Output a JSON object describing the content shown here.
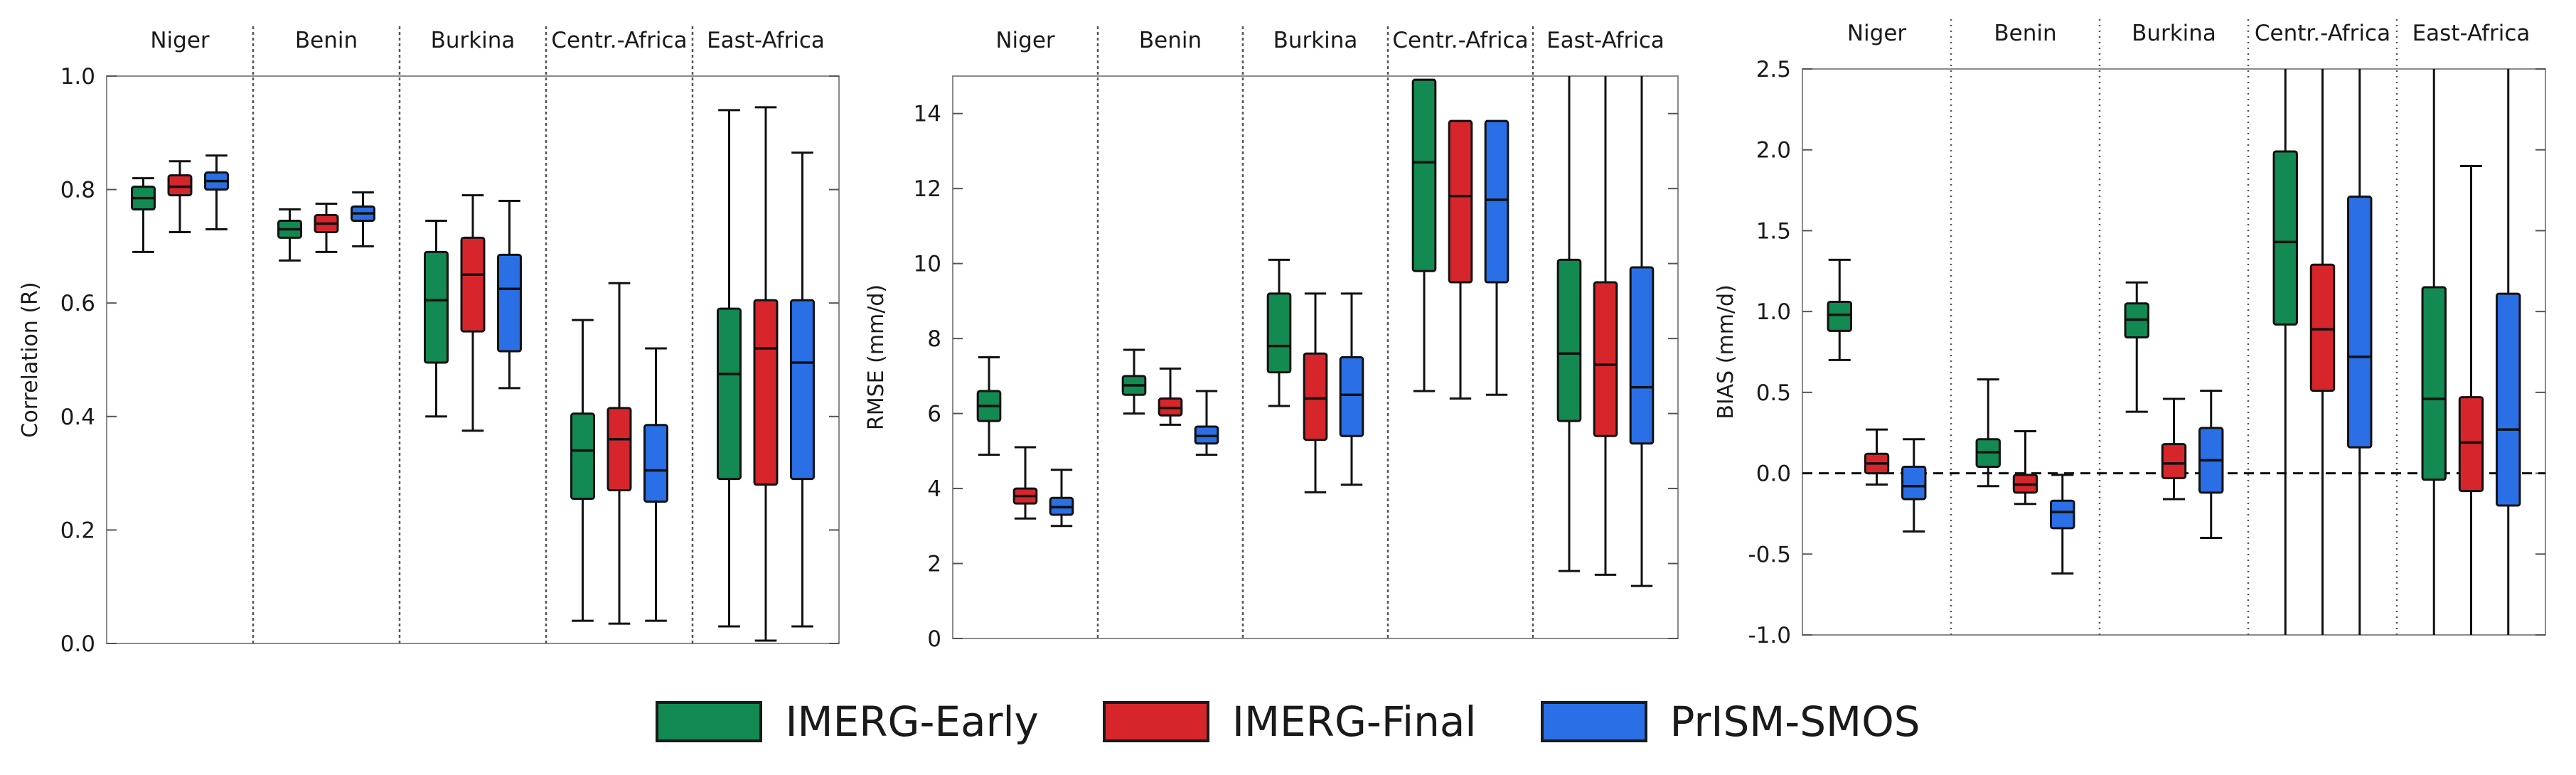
{
  "legend": [
    {
      "name": "IMERG-Early",
      "color": "#128A52"
    },
    {
      "name": "IMERG-Final",
      "color": "#D7262B"
    },
    {
      "name": "PrISM-SMOS",
      "color": "#2A6FE6"
    }
  ],
  "chart_data": [
    {
      "type": "boxplot",
      "ylabel": "Correlation (R)",
      "ylim": [
        0.0,
        1.0
      ],
      "yticks": [
        0.0,
        0.2,
        0.4,
        0.6,
        0.8,
        1.0
      ],
      "ytick_labels": [
        "0.0",
        "0.2",
        "0.4",
        "0.6",
        "0.8",
        "1.0"
      ],
      "zero_line": false,
      "separator_style": "dotted",
      "groups": [
        {
          "name": "Niger",
          "boxes": [
            {
              "series": "IMERG-Early",
              "min": 0.69,
              "q1": 0.765,
              "median": 0.785,
              "q3": 0.805,
              "max": 0.82
            },
            {
              "series": "IMERG-Final",
              "min": 0.725,
              "q1": 0.79,
              "median": 0.805,
              "q3": 0.825,
              "max": 0.85
            },
            {
              "series": "PrISM-SMOS",
              "min": 0.73,
              "q1": 0.8,
              "median": 0.815,
              "q3": 0.83,
              "max": 0.86
            }
          ]
        },
        {
          "name": "Benin",
          "boxes": [
            {
              "series": "IMERG-Early",
              "min": 0.675,
              "q1": 0.715,
              "median": 0.73,
              "q3": 0.745,
              "max": 0.765
            },
            {
              "series": "IMERG-Final",
              "min": 0.69,
              "q1": 0.725,
              "median": 0.74,
              "q3": 0.755,
              "max": 0.775
            },
            {
              "series": "PrISM-SMOS",
              "min": 0.7,
              "q1": 0.745,
              "median": 0.758,
              "q3": 0.77,
              "max": 0.795
            }
          ]
        },
        {
          "name": "Burkina",
          "boxes": [
            {
              "series": "IMERG-Early",
              "min": 0.4,
              "q1": 0.495,
              "median": 0.605,
              "q3": 0.69,
              "max": 0.745
            },
            {
              "series": "IMERG-Final",
              "min": 0.375,
              "q1": 0.55,
              "median": 0.65,
              "q3": 0.715,
              "max": 0.79
            },
            {
              "series": "PrISM-SMOS",
              "min": 0.45,
              "q1": 0.515,
              "median": 0.625,
              "q3": 0.685,
              "max": 0.78
            }
          ]
        },
        {
          "name": "Centr.-Africa",
          "boxes": [
            {
              "series": "IMERG-Early",
              "min": 0.04,
              "q1": 0.255,
              "median": 0.34,
              "q3": 0.405,
              "max": 0.57
            },
            {
              "series": "IMERG-Final",
              "min": 0.035,
              "q1": 0.27,
              "median": 0.36,
              "q3": 0.415,
              "max": 0.635
            },
            {
              "series": "PrISM-SMOS",
              "min": 0.04,
              "q1": 0.25,
              "median": 0.305,
              "q3": 0.385,
              "max": 0.52
            }
          ]
        },
        {
          "name": "East-Africa",
          "boxes": [
            {
              "series": "IMERG-Early",
              "min": 0.03,
              "q1": 0.29,
              "median": 0.475,
              "q3": 0.59,
              "max": 0.94
            },
            {
              "series": "IMERG-Final",
              "min": 0.005,
              "q1": 0.28,
              "median": 0.52,
              "q3": 0.605,
              "max": 0.945
            },
            {
              "series": "PrISM-SMOS",
              "min": 0.03,
              "q1": 0.29,
              "median": 0.495,
              "q3": 0.605,
              "max": 0.865
            }
          ]
        }
      ]
    },
    {
      "type": "boxplot",
      "ylabel": "RMSE (mm/d)",
      "ylim": [
        0,
        15
      ],
      "yticks": [
        0,
        2,
        4,
        6,
        8,
        10,
        12,
        14
      ],
      "ytick_labels": [
        "0",
        "2",
        "4",
        "6",
        "8",
        "10",
        "12",
        "14"
      ],
      "zero_line": false,
      "separator_style": "dotted",
      "groups": [
        {
          "name": "Niger",
          "boxes": [
            {
              "series": "IMERG-Early",
              "min": 4.9,
              "q1": 5.8,
              "median": 6.2,
              "q3": 6.6,
              "max": 7.5
            },
            {
              "series": "IMERG-Final",
              "min": 3.2,
              "q1": 3.6,
              "median": 3.8,
              "q3": 4.0,
              "max": 5.1
            },
            {
              "series": "PrISM-SMOS",
              "min": 3.0,
              "q1": 3.3,
              "median": 3.5,
              "q3": 3.75,
              "max": 4.5
            }
          ]
        },
        {
          "name": "Benin",
          "boxes": [
            {
              "series": "IMERG-Early",
              "min": 6.0,
              "q1": 6.5,
              "median": 6.75,
              "q3": 7.0,
              "max": 7.7
            },
            {
              "series": "IMERG-Final",
              "min": 5.7,
              "q1": 5.95,
              "median": 6.15,
              "q3": 6.4,
              "max": 7.2
            },
            {
              "series": "PrISM-SMOS",
              "min": 4.9,
              "q1": 5.2,
              "median": 5.4,
              "q3": 5.65,
              "max": 6.6
            }
          ]
        },
        {
          "name": "Burkina",
          "boxes": [
            {
              "series": "IMERG-Early",
              "min": 6.2,
              "q1": 7.1,
              "median": 7.8,
              "q3": 9.2,
              "max": 10.1
            },
            {
              "series": "IMERG-Final",
              "min": 3.9,
              "q1": 5.3,
              "median": 6.4,
              "q3": 7.6,
              "max": 9.2
            },
            {
              "series": "PrISM-SMOS",
              "min": 4.1,
              "q1": 5.4,
              "median": 6.5,
              "q3": 7.5,
              "max": 9.2
            }
          ]
        },
        {
          "name": "Centr.-Africa",
          "boxes": [
            {
              "series": "IMERG-Early",
              "min": 6.6,
              "q1": 9.8,
              "median": 12.7,
              "q3": 14.9,
              "max": 14.9
            },
            {
              "series": "IMERG-Final",
              "min": 6.4,
              "q1": 9.5,
              "median": 11.8,
              "q3": 13.8,
              "max": 13.8
            },
            {
              "series": "PrISM-SMOS",
              "min": 6.5,
              "q1": 9.5,
              "median": 11.7,
              "q3": 13.8,
              "max": 13.8
            }
          ]
        },
        {
          "name": "East-Africa",
          "boxes": [
            {
              "series": "IMERG-Early",
              "min": 1.8,
              "q1": 5.8,
              "median": 7.6,
              "q3": 10.1,
              "max": 15.0
            },
            {
              "series": "IMERG-Final",
              "min": 1.7,
              "q1": 5.4,
              "median": 7.3,
              "q3": 9.5,
              "max": 15.0
            },
            {
              "series": "PrISM-SMOS",
              "min": 1.4,
              "q1": 5.2,
              "median": 6.7,
              "q3": 9.9,
              "max": 15.0
            }
          ]
        }
      ]
    },
    {
      "type": "boxplot",
      "ylabel": "BIAS (mm/d)",
      "ylim": [
        -1.0,
        2.5
      ],
      "yticks": [
        -1.0,
        -0.5,
        0.0,
        0.5,
        1.0,
        1.5,
        2.0,
        2.5
      ],
      "ytick_labels": [
        "-1.0",
        "-0.5",
        "0.0",
        "0.5",
        "1.0",
        "1.5",
        "2.0",
        "2.5"
      ],
      "zero_line": true,
      "separator_style": "dotted-fine",
      "groups": [
        {
          "name": "Niger",
          "boxes": [
            {
              "series": "IMERG-Early",
              "min": 0.7,
              "q1": 0.88,
              "median": 0.98,
              "q3": 1.06,
              "max": 1.32
            },
            {
              "series": "IMERG-Final",
              "min": -0.07,
              "q1": 0.0,
              "median": 0.06,
              "q3": 0.12,
              "max": 0.27
            },
            {
              "series": "PrISM-SMOS",
              "min": -0.36,
              "q1": -0.16,
              "median": -0.08,
              "q3": 0.04,
              "max": 0.21
            }
          ]
        },
        {
          "name": "Benin",
          "boxes": [
            {
              "series": "IMERG-Early",
              "min": -0.08,
              "q1": 0.04,
              "median": 0.13,
              "q3": 0.21,
              "max": 0.58
            },
            {
              "series": "IMERG-Final",
              "min": -0.19,
              "q1": -0.12,
              "median": -0.07,
              "q3": -0.01,
              "max": 0.26
            },
            {
              "series": "PrISM-SMOS",
              "min": -0.62,
              "q1": -0.34,
              "median": -0.24,
              "q3": -0.17,
              "max": -0.01
            }
          ]
        },
        {
          "name": "Burkina",
          "boxes": [
            {
              "series": "IMERG-Early",
              "min": 0.38,
              "q1": 0.84,
              "median": 0.95,
              "q3": 1.05,
              "max": 1.18
            },
            {
              "series": "IMERG-Final",
              "min": -0.16,
              "q1": -0.03,
              "median": 0.06,
              "q3": 0.18,
              "max": 0.46
            },
            {
              "series": "PrISM-SMOS",
              "min": -0.4,
              "q1": -0.12,
              "median": 0.08,
              "q3": 0.28,
              "max": 0.51
            }
          ]
        },
        {
          "name": "Centr.-Africa",
          "boxes": [
            {
              "series": "IMERG-Early",
              "min": -1.0,
              "q1": 0.92,
              "median": 1.43,
              "q3": 1.99,
              "max": 2.5
            },
            {
              "series": "IMERG-Final",
              "min": -1.0,
              "q1": 0.51,
              "median": 0.89,
              "q3": 1.29,
              "max": 2.5
            },
            {
              "series": "PrISM-SMOS",
              "min": -1.0,
              "q1": 0.16,
              "median": 0.72,
              "q3": 1.71,
              "max": 2.5
            }
          ]
        },
        {
          "name": "East-Africa",
          "boxes": [
            {
              "series": "IMERG-Early",
              "min": -1.0,
              "q1": -0.04,
              "median": 0.46,
              "q3": 1.15,
              "max": 2.5
            },
            {
              "series": "IMERG-Final",
              "min": -1.0,
              "q1": -0.11,
              "median": 0.19,
              "q3": 0.47,
              "max": 1.9
            },
            {
              "series": "PrISM-SMOS",
              "min": -1.0,
              "q1": -0.2,
              "median": 0.27,
              "q3": 1.11,
              "max": 2.5
            }
          ]
        }
      ]
    }
  ]
}
